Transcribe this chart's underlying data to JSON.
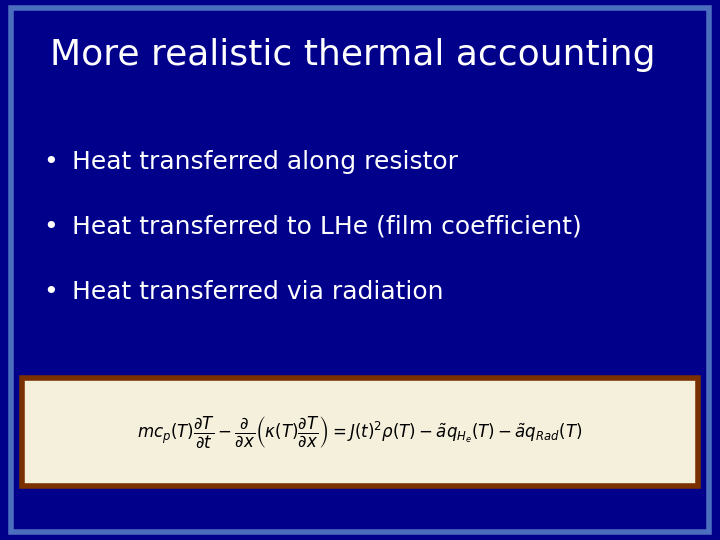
{
  "title": "More realistic thermal accounting",
  "bullets": [
    "Heat transferred along resistor",
    "Heat transferred to LHe (film coefficient)",
    "Heat transferred via radiation"
  ],
  "background_color": "#00008B",
  "border_color": "#4B6EBF",
  "title_color": "#FFFFFF",
  "bullet_color": "#FFFFFF",
  "formula_box_bg": "#F5F0DC",
  "formula_box_border": "#7B3000",
  "fig_width": 7.2,
  "fig_height": 5.4,
  "dpi": 100
}
